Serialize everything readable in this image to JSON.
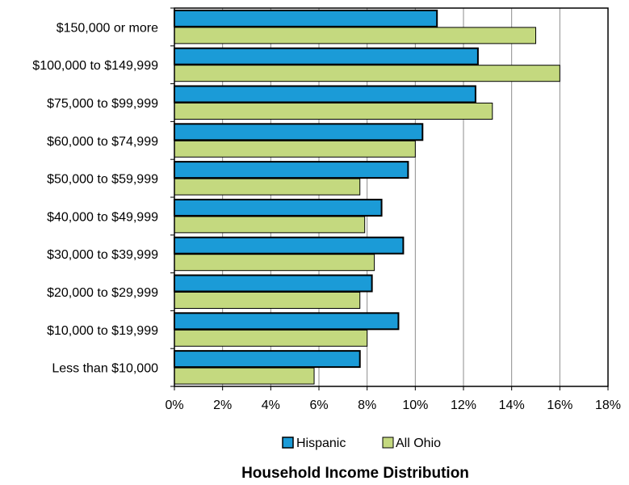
{
  "chart_data": {
    "type": "bar",
    "orientation": "horizontal",
    "title": "Household Income Distribution",
    "categories": [
      "$150,000 or more",
      "$100,000 to $149,999",
      "$75,000 to $99,999",
      "$60,000 to $74,999",
      "$50,000 to $59,999",
      "$40,000 to $49,999",
      "$30,000 to $39,999",
      "$20,000 to $29,999",
      "$10,000 to $19,999",
      "Less than $10,000"
    ],
    "series": [
      {
        "name": "Hispanic",
        "color": "#1b9bd7",
        "values": [
          10.9,
          12.6,
          12.5,
          10.3,
          9.7,
          8.6,
          9.5,
          8.2,
          9.3,
          7.7
        ]
      },
      {
        "name": "All Ohio",
        "color": "#c4d97f",
        "values": [
          15.0,
          16.0,
          13.2,
          10.0,
          7.7,
          7.9,
          8.3,
          7.7,
          8.0,
          5.8
        ]
      }
    ],
    "xlim": [
      0,
      18
    ],
    "x_ticks": [
      "0%",
      "2%",
      "4%",
      "6%",
      "8%",
      "10%",
      "12%",
      "14%",
      "16%",
      "18%"
    ],
    "grid": "vertical",
    "legend_position": "bottom"
  }
}
